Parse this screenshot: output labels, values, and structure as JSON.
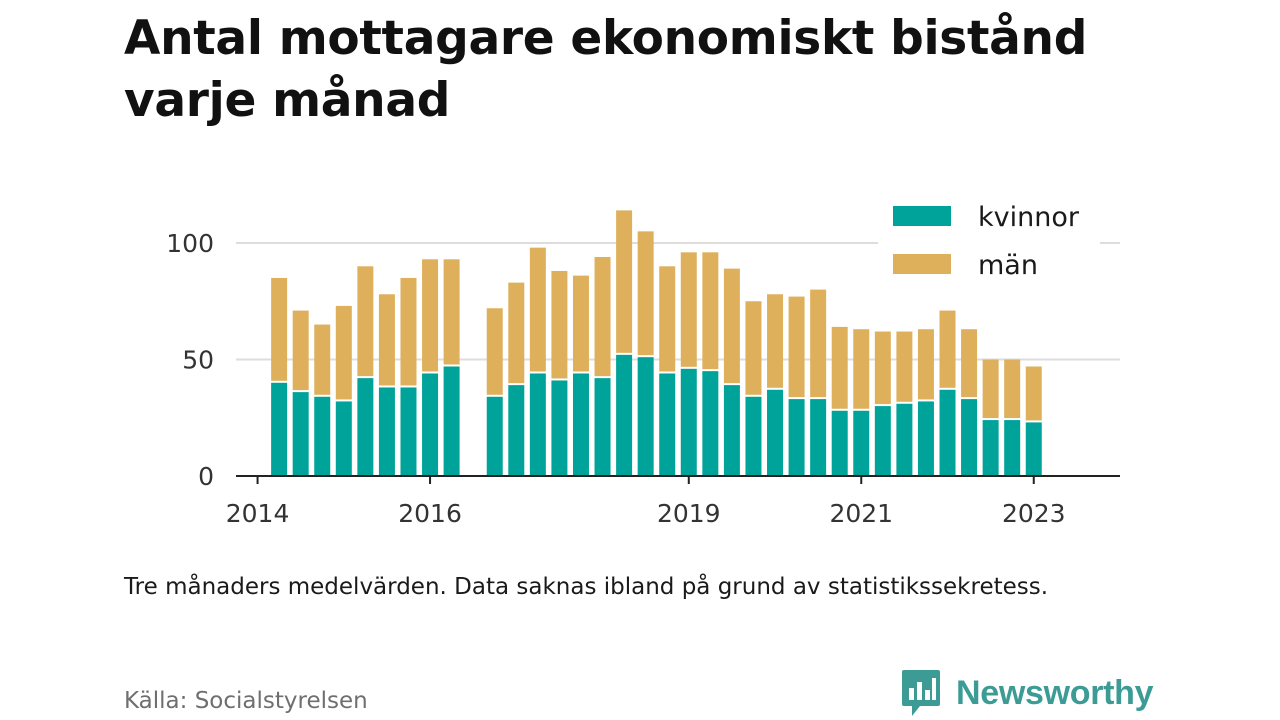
{
  "title": "Antal mottagare ekonomiskt bistånd varje månad",
  "note": "Tre månaders medelvärden. Data saknas ibland på grund av statistikssekretess.",
  "source": "Källa: Socialstyrelsen",
  "brand": {
    "name": "Newsworthy",
    "color": "#3c9c95",
    "icon": "newsworthy-logo-icon"
  },
  "chart_data": {
    "type": "bar",
    "stacked": true,
    "legend_position": "top-right",
    "grid": true,
    "ylim": [
      0,
      110
    ],
    "y_ticks": [
      0,
      50,
      100
    ],
    "x_ticks": [
      2014,
      2016,
      2019,
      2021,
      2023
    ],
    "x_domain": [
      2013.75,
      2024.0
    ],
    "x": [
      2014.25,
      2014.5,
      2014.75,
      2015.0,
      2015.25,
      2015.5,
      2015.75,
      2016.0,
      2016.25,
      2016.75,
      2017.0,
      2017.25,
      2017.5,
      2017.75,
      2018.0,
      2018.25,
      2018.5,
      2018.75,
      2019.0,
      2019.25,
      2019.5,
      2019.75,
      2020.0,
      2020.25,
      2020.5,
      2020.75,
      2021.0,
      2021.25,
      2021.5,
      2021.75,
      2022.0,
      2022.25,
      2022.5,
      2022.75,
      2023.0
    ],
    "series": [
      {
        "name": "kvinnor",
        "color": "#00a399",
        "values": [
          40,
          36,
          34,
          32,
          42,
          38,
          38,
          44,
          47,
          34,
          39,
          44,
          41,
          44,
          42,
          52,
          51,
          44,
          46,
          45,
          39,
          34,
          37,
          33,
          33,
          28,
          28,
          30,
          31,
          32,
          37,
          33,
          24,
          24,
          23
        ]
      },
      {
        "name": "män",
        "color": "#deb05c",
        "values": [
          45,
          35,
          31,
          41,
          48,
          40,
          47,
          49,
          46,
          38,
          44,
          54,
          47,
          42,
          52,
          62,
          54,
          46,
          50,
          51,
          50,
          41,
          41,
          44,
          47,
          36,
          35,
          32,
          31,
          31,
          34,
          30,
          26,
          26,
          24
        ]
      }
    ]
  }
}
